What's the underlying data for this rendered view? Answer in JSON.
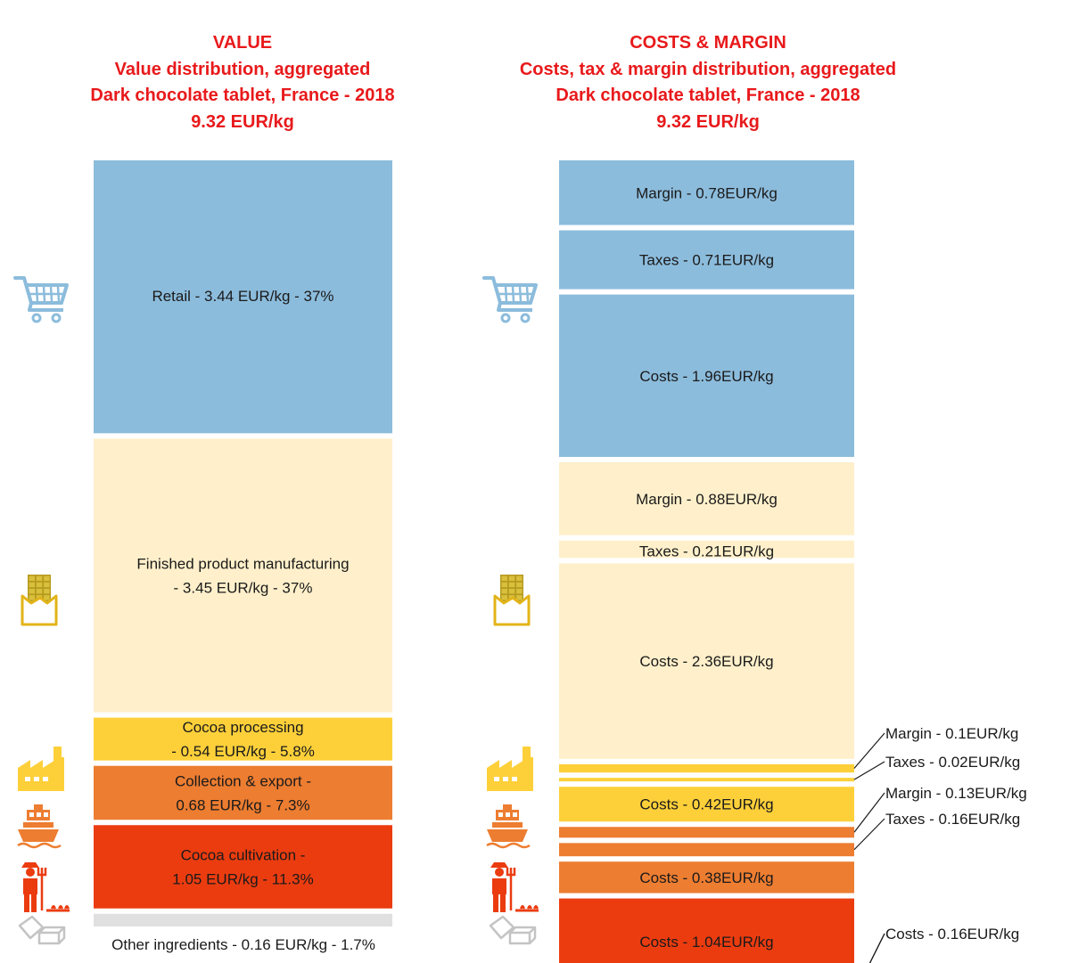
{
  "left_panel": {
    "heading": "VALUE",
    "subtitle": "Value distribution, aggregated",
    "product": "Dark chocolate tablet, France  - 2018",
    "total": "9.32  EUR/kg"
  },
  "right_panel": {
    "heading": "COSTS & MARGIN",
    "subtitle": "Costs, tax & margin distribution, aggregated",
    "product": "Dark chocolate tablet, France  - 2018",
    "total": "9.32  EUR/kg"
  },
  "colors": {
    "retail": "#8cbcdc",
    "manufacturing": "#fff0cb",
    "processing": "#fdd03a",
    "collection": "#ed7d31",
    "cultivation": "#eb3c10",
    "other": "#e0e0e0",
    "title": "#e8191b",
    "icon_retail": "#8cbcdc",
    "icon_orange": "#ed7d31",
    "icon_yellow": "#fdd03a",
    "icon_gray": "#c4c4c4"
  },
  "chart_data": [
    {
      "type": "bar",
      "stacked": true,
      "title": "Value distribution, aggregated - Dark chocolate tablet, France - 2018",
      "total": 9.32,
      "unit": "EUR/kg",
      "segments": [
        {
          "key": "retail",
          "stage": "Retail",
          "value": 3.44,
          "share": 37,
          "icon": "shopping-cart-icon",
          "label_lines": [
            "Retail - 3.44 EUR/kg  - 37%"
          ]
        },
        {
          "key": "manufacturing",
          "stage": "Finished product manufacturing",
          "value": 3.45,
          "share": 37,
          "icon": "chocolate-bar-icon",
          "label_lines": [
            "Finished product manufacturing",
            "- 3.45 EUR/kg - 37%"
          ]
        },
        {
          "key": "processing",
          "stage": "Cocoa processing",
          "value": 0.54,
          "share": 5.8,
          "icon": "factory-icon",
          "label_lines": [
            "Cocoa processing",
            "- 0.54 EUR/kg - 5.8%"
          ]
        },
        {
          "key": "collection",
          "stage": "Collection & export",
          "value": 0.68,
          "share": 7.3,
          "icon": "cargo-ship-icon",
          "label_lines": [
            "Collection & export -",
            "0.68 EUR/kg - 7.3%"
          ]
        },
        {
          "key": "cultivation",
          "stage": "Cocoa cultivation",
          "value": 1.05,
          "share": 11.3,
          "icon": "farmer-icon",
          "label_lines": [
            "Cocoa cultivation -",
            "1.05 EUR/kg - 11.3%"
          ]
        },
        {
          "key": "other",
          "stage": "Other ingredients",
          "value": 0.16,
          "share": 1.7,
          "icon": "sugar-cubes-icon",
          "label_lines": [
            "Other ingredients - 0.16 EUR/kg  - 1.7%"
          ]
        }
      ]
    },
    {
      "type": "bar",
      "stacked": true,
      "title": "Costs, tax & margin distribution, aggregated - Dark chocolate tablet, France - 2018",
      "total": 9.32,
      "unit": "EUR/kg",
      "segments": [
        {
          "group": "retail",
          "kind": "Margin",
          "value": 0.78,
          "label": "Margin - 0.78EUR/kg"
        },
        {
          "group": "retail",
          "kind": "Taxes",
          "value": 0.71,
          "label": "Taxes - 0.71EUR/kg"
        },
        {
          "group": "retail",
          "kind": "Costs",
          "value": 1.96,
          "label": "Costs - 1.96EUR/kg"
        },
        {
          "group": "manufacturing",
          "kind": "Margin",
          "value": 0.88,
          "label": "Margin - 0.88EUR/kg"
        },
        {
          "group": "manufacturing",
          "kind": "Taxes",
          "value": 0.21,
          "label": "Taxes - 0.21EUR/kg"
        },
        {
          "group": "manufacturing",
          "kind": "Costs",
          "value": 2.36,
          "label": "Costs - 2.36EUR/kg"
        },
        {
          "group": "processing",
          "kind": "Margin",
          "value": 0.1,
          "label": "Margin - 0.1EUR/kg",
          "callout": true
        },
        {
          "group": "processing",
          "kind": "Taxes",
          "value": 0.02,
          "label": "Taxes - 0.02EUR/kg",
          "callout": true
        },
        {
          "group": "processing",
          "kind": "Costs",
          "value": 0.42,
          "label": "Costs - 0.42EUR/kg"
        },
        {
          "group": "collection",
          "kind": "Margin",
          "value": 0.13,
          "label": "Margin - 0.13EUR/kg",
          "callout": true
        },
        {
          "group": "collection",
          "kind": "Taxes",
          "value": 0.16,
          "label": "Taxes - 0.16EUR/kg",
          "callout": true
        },
        {
          "group": "collection",
          "kind": "Costs",
          "value": 0.38,
          "label": "Costs - 0.38EUR/kg"
        },
        {
          "group": "cultivation",
          "kind": "Costs",
          "value": 1.04,
          "label": "Costs - 1.04EUR/kg"
        },
        {
          "group": "other",
          "kind": "Costs",
          "value": 0.16,
          "label": "Costs - 0.16EUR/kg",
          "callout": true
        }
      ]
    }
  ]
}
